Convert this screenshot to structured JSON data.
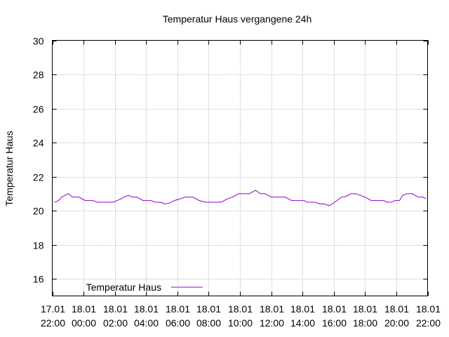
{
  "chart_data": {
    "type": "line",
    "title": "Temperatur Haus vergangene 24h",
    "xlabel": "",
    "ylabel": "Temperatur Haus",
    "ylim": [
      15,
      30
    ],
    "yticks": [
      16,
      18,
      20,
      22,
      24,
      26,
      28,
      30
    ],
    "xticks": [
      {
        "t": 0,
        "line1": "17.01",
        "line2": "22:00"
      },
      {
        "t": 2,
        "line1": "18.01",
        "line2": "00:00"
      },
      {
        "t": 4,
        "line1": "18.01",
        "line2": "02:00"
      },
      {
        "t": 6,
        "line1": "18.01",
        "line2": "04:00"
      },
      {
        "t": 8,
        "line1": "18.01",
        "line2": "06:00"
      },
      {
        "t": 10,
        "line1": "18.01",
        "line2": "08:00"
      },
      {
        "t": 12,
        "line1": "18.01",
        "line2": "10:00"
      },
      {
        "t": 14,
        "line1": "18.01",
        "line2": "12:00"
      },
      {
        "t": 16,
        "line1": "18.01",
        "line2": "14:00"
      },
      {
        "t": 18,
        "line1": "18.01",
        "line2": "16:00"
      },
      {
        "t": 20,
        "line1": "18.01",
        "line2": "18:00"
      },
      {
        "t": 22,
        "line1": "18.01",
        "line2": "20:00"
      },
      {
        "t": 24,
        "line1": "18.01",
        "line2": "22:00"
      }
    ],
    "xlim": [
      0,
      24
    ],
    "grid": true,
    "legend": "bottom-left",
    "series": [
      {
        "name": "Temperatur Haus",
        "color": "#9400d3",
        "points": [
          [
            0.15,
            20.5
          ],
          [
            0.4,
            20.6
          ],
          [
            0.6,
            20.8
          ],
          [
            0.9,
            20.95
          ],
          [
            1.05,
            21.0
          ],
          [
            1.3,
            20.8
          ],
          [
            1.7,
            20.8
          ],
          [
            2.1,
            20.6
          ],
          [
            2.6,
            20.6
          ],
          [
            2.9,
            20.5
          ],
          [
            3.4,
            20.5
          ],
          [
            3.9,
            20.5
          ],
          [
            4.4,
            20.7
          ],
          [
            4.7,
            20.85
          ],
          [
            4.9,
            20.9
          ],
          [
            5.1,
            20.8
          ],
          [
            5.4,
            20.8
          ],
          [
            5.8,
            20.6
          ],
          [
            6.3,
            20.6
          ],
          [
            6.6,
            20.5
          ],
          [
            6.9,
            20.5
          ],
          [
            7.2,
            20.4
          ],
          [
            7.5,
            20.45
          ],
          [
            7.8,
            20.6
          ],
          [
            8.2,
            20.7
          ],
          [
            8.5,
            20.8
          ],
          [
            9.0,
            20.8
          ],
          [
            9.4,
            20.6
          ],
          [
            9.8,
            20.5
          ],
          [
            10.3,
            20.5
          ],
          [
            10.8,
            20.5
          ],
          [
            11.2,
            20.7
          ],
          [
            11.5,
            20.8
          ],
          [
            11.9,
            21.0
          ],
          [
            12.3,
            21.0
          ],
          [
            12.6,
            21.0
          ],
          [
            13.0,
            21.2
          ],
          [
            13.3,
            21.0
          ],
          [
            13.6,
            21.0
          ],
          [
            14.0,
            20.8
          ],
          [
            14.5,
            20.8
          ],
          [
            14.9,
            20.8
          ],
          [
            15.3,
            20.6
          ],
          [
            15.7,
            20.6
          ],
          [
            16.1,
            20.6
          ],
          [
            16.3,
            20.5
          ],
          [
            16.8,
            20.5
          ],
          [
            17.1,
            20.4
          ],
          [
            17.4,
            20.4
          ],
          [
            17.7,
            20.3
          ],
          [
            17.9,
            20.4
          ],
          [
            18.2,
            20.6
          ],
          [
            18.5,
            20.8
          ],
          [
            18.8,
            20.85
          ],
          [
            19.1,
            21.0
          ],
          [
            19.4,
            21.0
          ],
          [
            19.7,
            20.9
          ],
          [
            20.0,
            20.8
          ],
          [
            20.4,
            20.6
          ],
          [
            20.8,
            20.6
          ],
          [
            21.2,
            20.6
          ],
          [
            21.4,
            20.5
          ],
          [
            21.7,
            20.5
          ],
          [
            21.9,
            20.6
          ],
          [
            22.2,
            20.6
          ],
          [
            22.4,
            20.9
          ],
          [
            22.7,
            21.0
          ],
          [
            23.0,
            21.0
          ],
          [
            23.2,
            20.9
          ],
          [
            23.4,
            20.8
          ],
          [
            23.7,
            20.8
          ],
          [
            23.9,
            20.7
          ]
        ]
      }
    ]
  }
}
